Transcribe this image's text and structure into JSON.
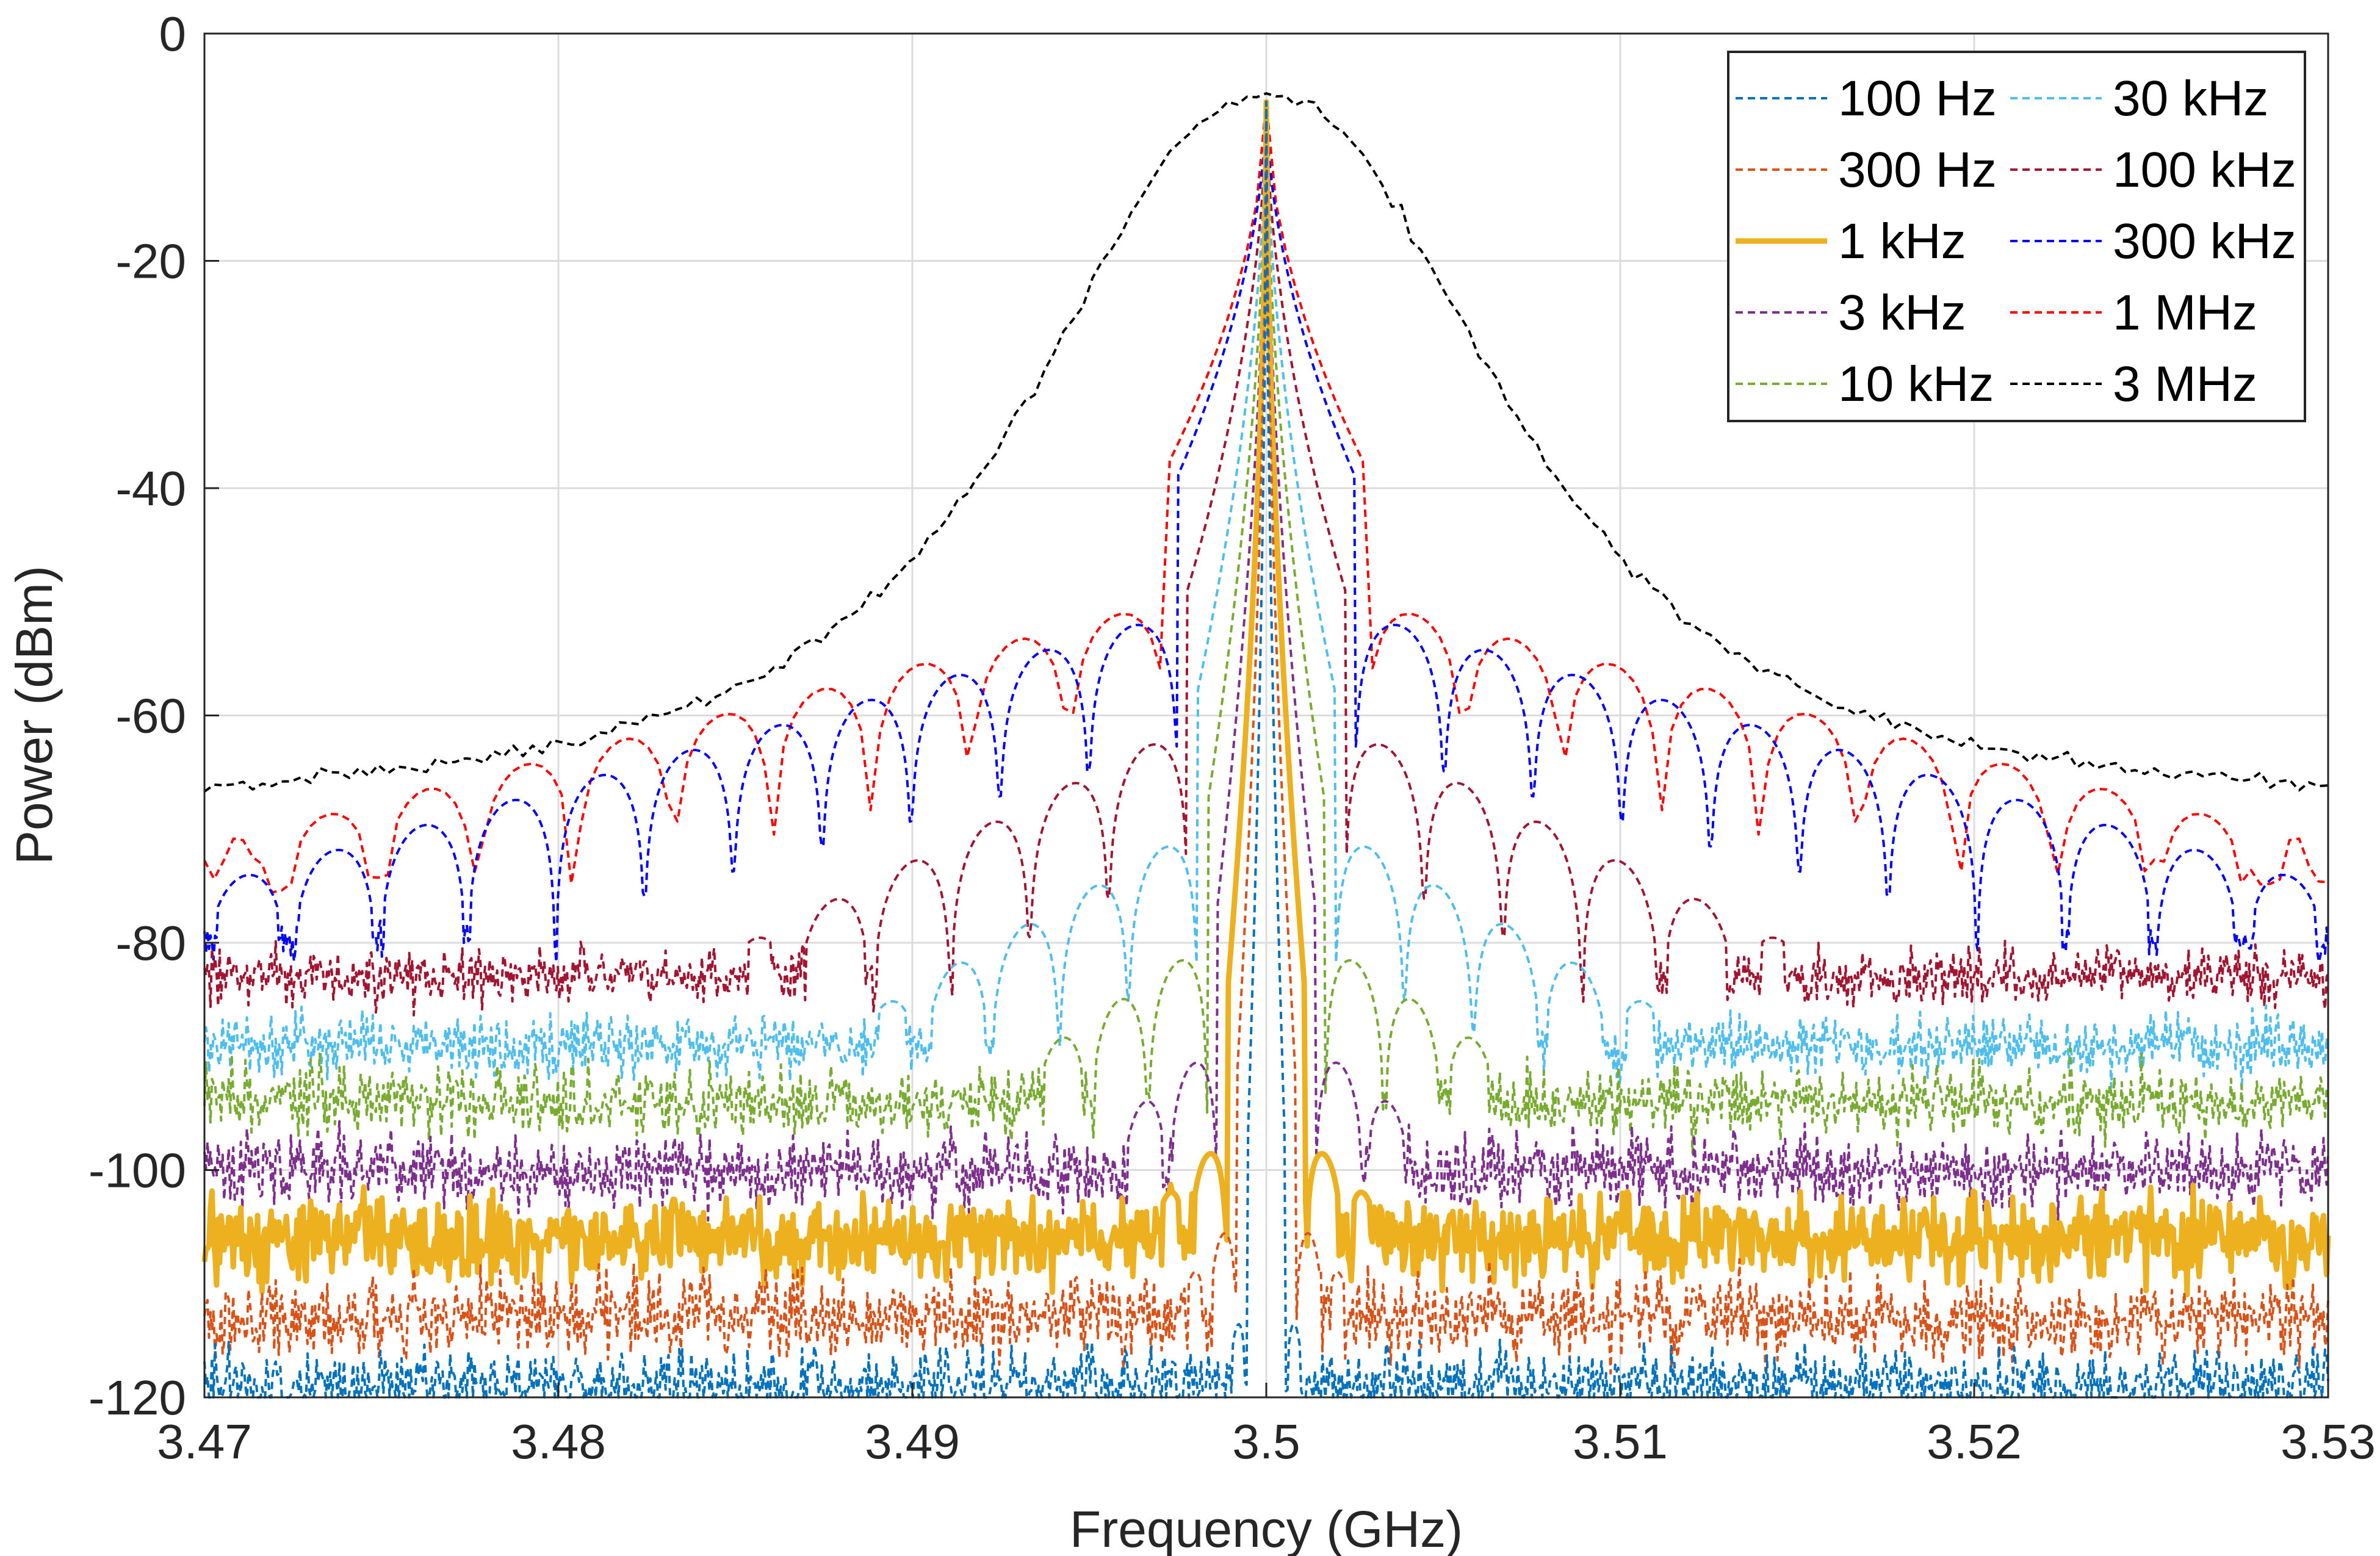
{
  "chart_data": {
    "type": "line",
    "title": "",
    "xlabel": "Frequency (GHz)",
    "ylabel": "Power (dBm)",
    "xlim": [
      3.47,
      3.53
    ],
    "ylim": [
      -120,
      0
    ],
    "x_ticks": [
      3.47,
      3.48,
      3.49,
      3.5,
      3.51,
      3.52,
      3.53
    ],
    "x_tick_labels": [
      "3.47",
      "3.48",
      "3.49",
      "3.5",
      "3.51",
      "3.52",
      "3.53"
    ],
    "y_ticks": [
      0,
      -20,
      -40,
      -60,
      -80,
      -100,
      -120
    ],
    "y_tick_labels": [
      "0",
      "-20",
      "-40",
      "-60",
      "-80",
      "-100",
      "-120"
    ],
    "grid": true,
    "legend_position": "top-right",
    "center_frequency": 3.5,
    "series": [
      {
        "name": "100 Hz",
        "color": "#0072BD",
        "style": "dashed",
        "noise_floor": -119,
        "peak": -6,
        "sidelobe": -112,
        "fluct": 1.6
      },
      {
        "name": "300 Hz",
        "color": "#D95319",
        "style": "dashed",
        "noise_floor": -113,
        "peak": -6,
        "sidelobe": -104,
        "fluct": 1.8
      },
      {
        "name": "1 kHz",
        "color": "#EDB120",
        "style": "solid",
        "noise_floor": -106,
        "peak": -6,
        "sidelobe": -97,
        "fluct": 1.8
      },
      {
        "name": "3 kHz",
        "color": "#7E2F8E",
        "style": "dashed",
        "noise_floor": -100,
        "peak": -6,
        "sidelobe": -89,
        "fluct": 1.6
      },
      {
        "name": "10 kHz",
        "color": "#77AC30",
        "style": "dashed",
        "noise_floor": -94,
        "peak": -6,
        "sidelobe": -80,
        "fluct": 1.5
      },
      {
        "name": "30 kHz",
        "color": "#4DBEEE",
        "style": "dashed",
        "noise_floor": -89,
        "peak": -6,
        "sidelobe": -70,
        "fluct": 1.3
      },
      {
        "name": "100 kHz",
        "color": "#A2142F",
        "style": "dashed",
        "noise_floor": -83,
        "peak": -6,
        "sidelobe": -61,
        "fluct": 1.2
      },
      {
        "name": "300 kHz",
        "color": "#0000FF",
        "style": "dashed",
        "noise_floor": -80,
        "peak": -6,
        "sidelobe": -51,
        "fluct": 0.9
      },
      {
        "name": "1 MHz",
        "color": "#FF0000",
        "style": "dashed",
        "noise_floor": -74,
        "peak": -6,
        "sidelobe": -50,
        "fluct": 0.8
      },
      {
        "name": "3 MHz",
        "color": "#000000",
        "style": "dashed",
        "noise_floor": -69,
        "peak": -5.5,
        "sidelobe": -69,
        "fluct": 0.6
      }
    ]
  }
}
